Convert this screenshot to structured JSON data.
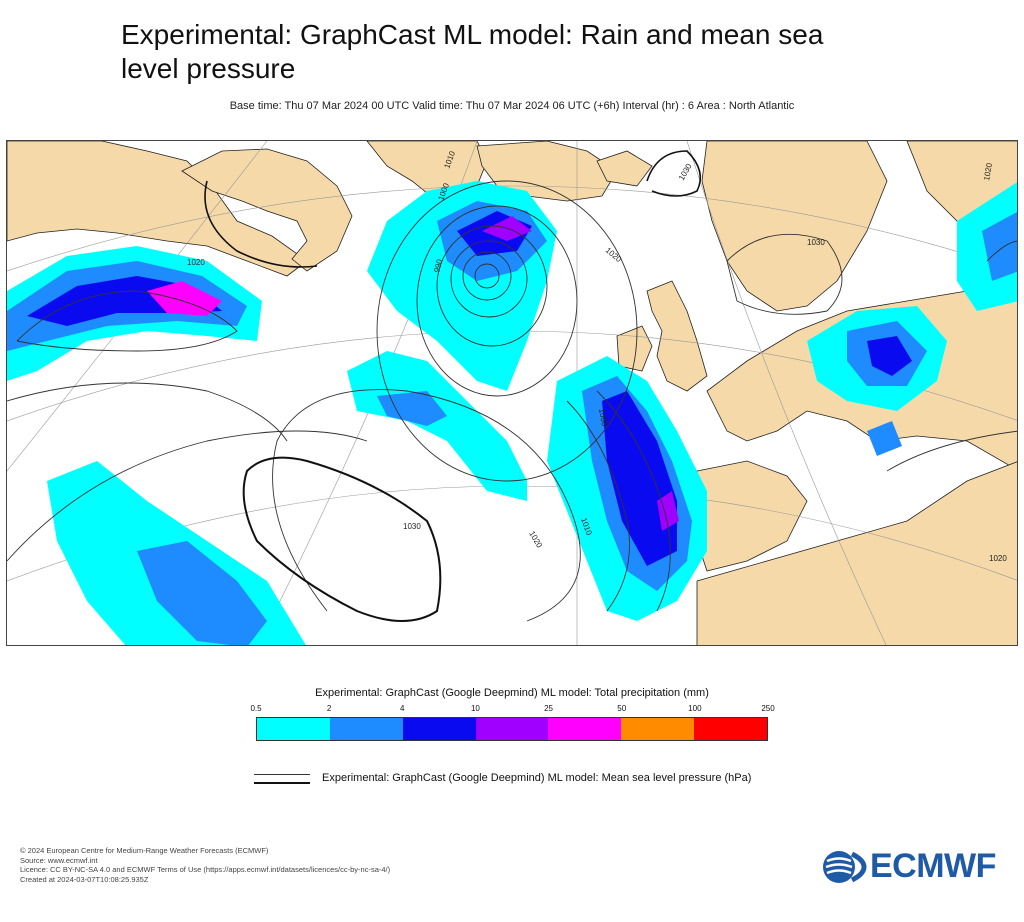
{
  "title": "Experimental: GraphCast ML model: Rain and mean sea level pressure",
  "subtitle": "Base time: Thu 07 Mar 2024 00 UTC Valid time: Thu 07 Mar 2024 06 UTC (+6h) Interval (hr) : 6 Area : North Atlantic",
  "map": {
    "colors": {
      "land": "#f5d9a8",
      "ocean": "#ffffff",
      "coast": "#222222",
      "graticule": "#999999"
    },
    "isobar_labels": [
      "1020",
      "1030",
      "1010",
      "1000",
      "990",
      "1020",
      "1030",
      "1020",
      "1010",
      "1000",
      "1020",
      "1030",
      "1020"
    ]
  },
  "precip_legend": {
    "title": "Experimental: GraphCast (Google Deepmind) ML model: Total precipitation (mm)",
    "ticks": [
      "0.5",
      "2",
      "4",
      "10",
      "25",
      "50",
      "100",
      "250"
    ],
    "colors": [
      "#00ffff",
      "#1e8cff",
      "#0a0af0",
      "#a000ff",
      "#ff00ff",
      "#ff8c00",
      "#ff0000"
    ]
  },
  "msl_legend": {
    "label": "Experimental: GraphCast (Google Deepmind) ML model: Mean sea level pressure (hPa)"
  },
  "footer": {
    "line1": "© 2024 European Centre for Medium-Range Weather Forecasts (ECMWF)",
    "line2": "Source: www.ecmwf.int",
    "line3": "Licence: CC BY-NC-SA 4.0 and ECMWF Terms of Use (https://apps.ecmwf.int/datasets/licences/cc-by-nc-sa-4/)",
    "line4": "Created at 2024-03-07T10:08:25.935Z"
  },
  "logo": {
    "text": "ECMWF",
    "color": "#1f5aa6"
  }
}
